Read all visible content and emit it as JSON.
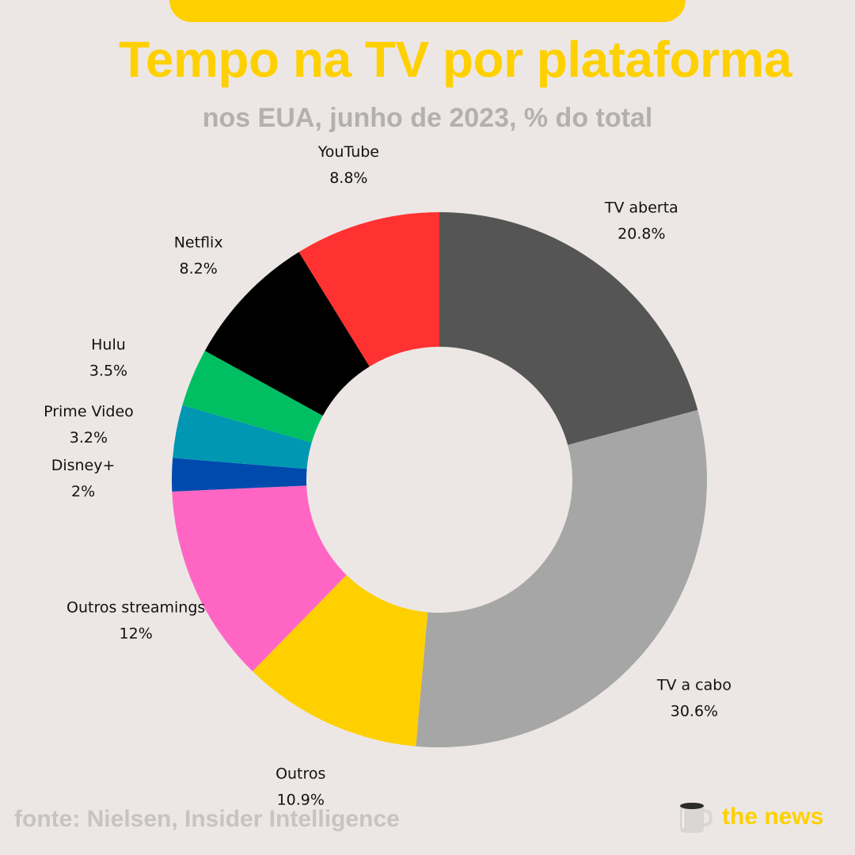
{
  "header": {
    "title": "Tempo na TV por plataforma",
    "subtitle": "nos EUA, junho de 2023, % do total"
  },
  "footer": {
    "source": "fonte: Nielsen, Insider Intelligence",
    "brand": "the news",
    "brand_icon": "coffee-mug-icon"
  },
  "colors": {
    "background": "#ece7e5",
    "accent": "#ffd000"
  },
  "chart_data": {
    "type": "pie",
    "style": "donut",
    "title": "Tempo na TV por plataforma",
    "subtitle": "nos EUA, junho de 2023, % do total",
    "unit": "%",
    "slices": [
      {
        "label": "TV aberta",
        "value": 20.8,
        "display": "20.8%",
        "color": "#555555"
      },
      {
        "label": "TV a cabo",
        "value": 30.6,
        "display": "30.6%",
        "color": "#a6a6a6"
      },
      {
        "label": "Outros",
        "value": 10.9,
        "display": "10.9%",
        "color": "#ffd000"
      },
      {
        "label": "Outros streamings",
        "value": 12,
        "display": "12%",
        "color": "#ff66c4"
      },
      {
        "label": "Disney+",
        "value": 2,
        "display": "2%",
        "color": "#004aad"
      },
      {
        "label": "Prime Video",
        "value": 3.2,
        "display": "3.2%",
        "color": "#0097b2"
      },
      {
        "label": "Hulu",
        "value": 3.5,
        "display": "3.5%",
        "color": "#00bf63"
      },
      {
        "label": "Netflix",
        "value": 8.2,
        "display": "8.2%",
        "color": "#000000"
      },
      {
        "label": "YouTube",
        "value": 8.8,
        "display": "8.8%",
        "color": "#ff3131"
      }
    ]
  }
}
